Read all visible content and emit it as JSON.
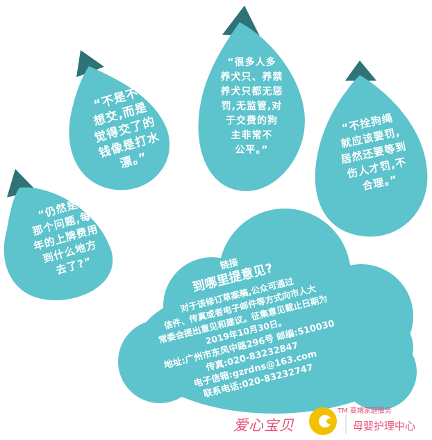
{
  "quotes": {
    "leftmost": "“仍然是\n那个问题,每\n年的上牌费用\n到什么地方\n去了?”",
    "left_middle": "“不是不\n想交,而是\n觉得交了的\n钱像是打水\n漂。”",
    "center_top": "“很多人多\n养犬只、养禁\n养犬只都无惩\n罚,无监管,对\n于交费的狗\n主非常不\n公平。”",
    "right": "“不拴狗绳\n就应该要罚,\n居然还要等到\n伤人才罚,不\n合理。”"
  },
  "cloud": {
    "sub_label": "链接",
    "title": "到哪里提意见?",
    "body": "对于该修订草案稿,公众可通过\n信件、传真或者电子邮件等方式向市人大\n常委会提出意见和建议。征集意见截止日期为\n2019年10月30日。",
    "contact": "地址:广州市东风中路296号  邮编:510030\n传真:020-83232847\n电子信箱:gzrdns@163.com\n联系电话:020-83232747"
  },
  "logo": {
    "brand_main": "爱心宝贝",
    "tm_line": "TM 高端家庭服务",
    "brand_right": "母婴护理中心"
  },
  "colors": {
    "teal": "#5dc3cc",
    "dark_tip": "#2f7377",
    "logo_pink": "#e8507a",
    "logo_yellow": "#f2c100"
  }
}
